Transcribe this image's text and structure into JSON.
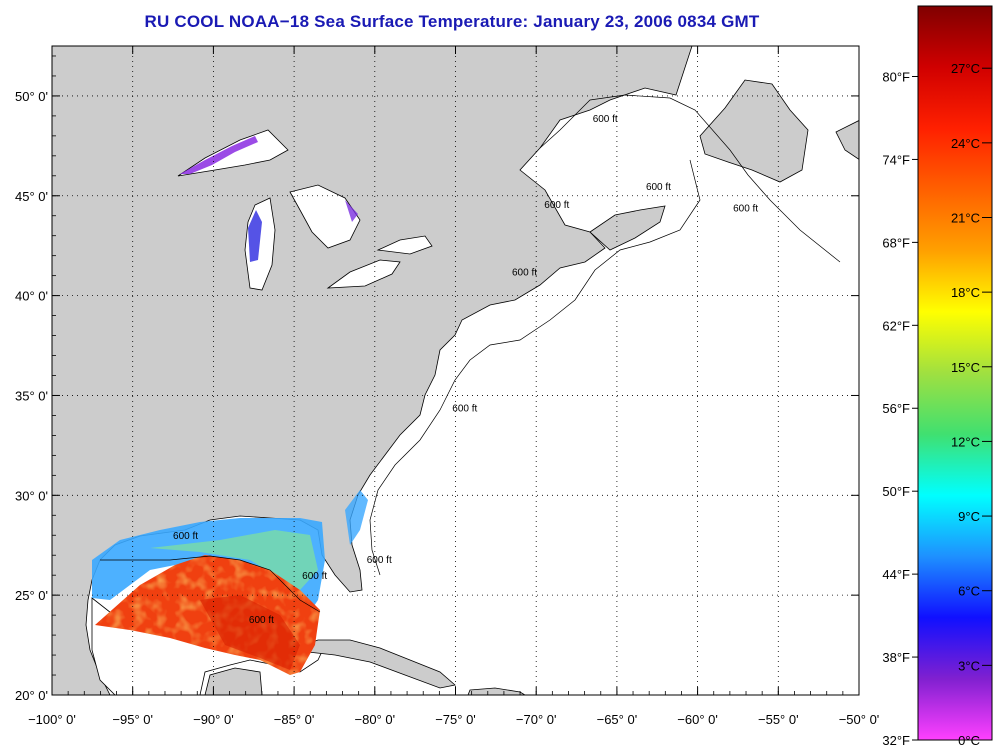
{
  "title": "RU COOL  NOAA−18  Sea Surface Temperature:  January 23, 2006 0834 GMT",
  "map": {
    "lon_range": [
      -100,
      -50
    ],
    "lat_range": [
      20,
      52.5
    ],
    "lon_ticks": [
      {
        "value": -100,
        "label": "−100° 0'"
      },
      {
        "value": -95,
        "label": "−95° 0'"
      },
      {
        "value": -90,
        "label": "−90° 0'"
      },
      {
        "value": -85,
        "label": "−85° 0'"
      },
      {
        "value": -80,
        "label": "−80° 0'"
      },
      {
        "value": -75,
        "label": "−75° 0'"
      },
      {
        "value": -70,
        "label": "−70° 0'"
      },
      {
        "value": -65,
        "label": "−65° 0'"
      },
      {
        "value": -60,
        "label": "−60° 0'"
      },
      {
        "value": -55,
        "label": "−55° 0'"
      },
      {
        "value": -50,
        "label": "−50° 0'"
      }
    ],
    "lat_ticks": [
      {
        "value": 20,
        "label": "20° 0'"
      },
      {
        "value": 25,
        "label": "25° 0'"
      },
      {
        "value": 30,
        "label": "30° 0'"
      },
      {
        "value": 35,
        "label": "35° 0'"
      },
      {
        "value": 40,
        "label": "40° 0'"
      },
      {
        "value": 45,
        "label": "45° 0'"
      },
      {
        "value": 50,
        "label": "50° 0'"
      }
    ],
    "grid": "dotted",
    "land_color": "#cccccc",
    "ocean_color": "#ffffff",
    "isobath_label": "600 ft",
    "isobath_labels": [
      {
        "lon": -66.5,
        "lat": 48.7,
        "text": "600 ft"
      },
      {
        "lon": -57.8,
        "lat": 44.2,
        "text": "600 ft"
      },
      {
        "lon": -63.2,
        "lat": 45.3,
        "text": "600 ft"
      },
      {
        "lon": -69.5,
        "lat": 44.4,
        "text": "600 ft"
      },
      {
        "lon": -71.5,
        "lat": 41.0,
        "text": "600 ft"
      },
      {
        "lon": -75.2,
        "lat": 34.2,
        "text": "600 ft"
      },
      {
        "lon": -92.5,
        "lat": 27.8,
        "text": "600 ft"
      },
      {
        "lon": -84.5,
        "lat": 25.8,
        "text": "600 ft"
      },
      {
        "lon": -87.8,
        "lat": 23.6,
        "text": "600 ft"
      },
      {
        "lon": -80.5,
        "lat": 26.6,
        "text": "600 ft"
      },
      {
        "lon": -49.0,
        "lat": 44.2,
        "text": "600 ft"
      }
    ]
  },
  "colorbar": {
    "palette": [
      "#ff40ff",
      "#8020d0",
      "#1010ff",
      "#1e90ff",
      "#00ffff",
      "#40e070",
      "#a0e040",
      "#ffff00",
      "#ffa000",
      "#ff6000",
      "#ff2000",
      "#d00000",
      "#800000"
    ],
    "celsius_range": [
      0,
      29.5
    ],
    "fahrenheit_range": [
      32,
      85.1
    ],
    "celsius_ticks": [
      {
        "value": 0,
        "label": "0°C"
      },
      {
        "value": 3,
        "label": "3°C"
      },
      {
        "value": 6,
        "label": "6°C"
      },
      {
        "value": 9,
        "label": "9°C"
      },
      {
        "value": 12,
        "label": "12°C"
      },
      {
        "value": 15,
        "label": "15°C"
      },
      {
        "value": 18,
        "label": "18°C"
      },
      {
        "value": 21,
        "label": "21°C"
      },
      {
        "value": 24,
        "label": "24°C"
      },
      {
        "value": 27,
        "label": "27°C"
      }
    ],
    "fahrenheit_ticks": [
      {
        "value": 32,
        "label": "32°F"
      },
      {
        "value": 38,
        "label": "38°F"
      },
      {
        "value": 44,
        "label": "44°F"
      },
      {
        "value": 50,
        "label": "50°F"
      },
      {
        "value": 56,
        "label": "56°F"
      },
      {
        "value": 62,
        "label": "62°F"
      },
      {
        "value": 68,
        "label": "68°F"
      },
      {
        "value": 74,
        "label": "74°F"
      },
      {
        "value": 80,
        "label": "80°F"
      }
    ]
  }
}
